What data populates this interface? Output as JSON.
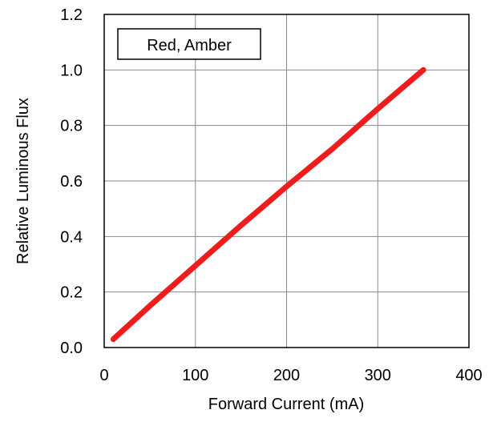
{
  "chart_data": {
    "type": "line",
    "title": "",
    "xlabel": "Forward Current (mA)",
    "ylabel": "Relative Luminous Flux",
    "xlim": [
      0,
      400
    ],
    "ylim": [
      0,
      1.2
    ],
    "xticks": [
      0,
      100,
      200,
      300,
      400
    ],
    "yticks": [
      0.0,
      0.2,
      0.4,
      0.6,
      0.8,
      1.0,
      1.2
    ],
    "xtick_labels": [
      "0",
      "100",
      "200",
      "300",
      "400"
    ],
    "ytick_labels": [
      "0.0",
      "0.2",
      "0.4",
      "0.6",
      "0.8",
      "1.0",
      "1.2"
    ],
    "grid": true,
    "legend_position": "top-left",
    "legend_label": "Red, Amber",
    "series": [
      {
        "color": "#ee1c1c",
        "x": [
          10,
          50,
          100,
          150,
          200,
          250,
          300,
          350
        ],
        "y": [
          0.03,
          0.15,
          0.295,
          0.44,
          0.58,
          0.715,
          0.86,
          1.0
        ]
      }
    ]
  }
}
